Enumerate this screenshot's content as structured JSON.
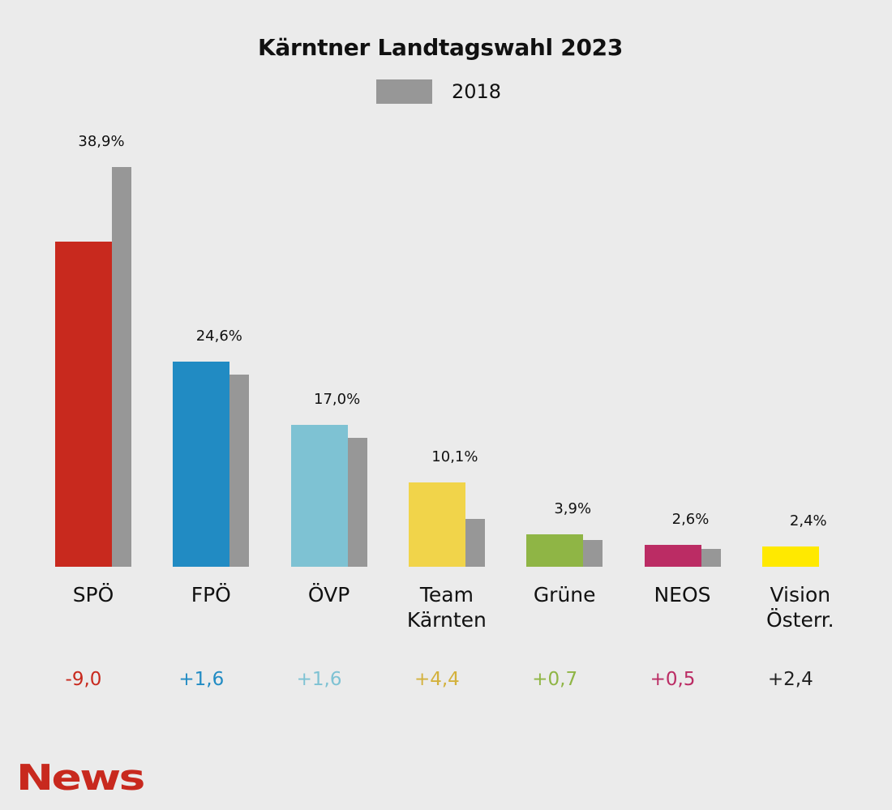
{
  "chart_data": {
    "type": "bar",
    "title": "Kärntner Landtagswahl 2023",
    "legend": [
      {
        "name": "2018",
        "color": "#979797"
      }
    ],
    "legend_placement": "top-center",
    "ylim": [
      0,
      50
    ],
    "grid": false,
    "categories": [
      "SPÖ",
      "FPÖ",
      "ÖVP",
      "Team\nKärnten",
      "Grüne",
      "NEOS",
      "Vision\nÖsterr."
    ],
    "series": [
      {
        "name": "2023",
        "values": [
          38.9,
          24.6,
          17.0,
          10.1,
          3.9,
          2.6,
          2.4
        ],
        "colors": [
          "#c8291e",
          "#218bc3",
          "#7ec2d3",
          "#f1d44a",
          "#8fb545",
          "#bb2c64",
          "#ffe900"
        ]
      },
      {
        "name": "2018",
        "values": [
          47.9,
          23.0,
          15.4,
          5.7,
          3.2,
          2.1,
          null
        ],
        "color": "#979797"
      }
    ],
    "value_labels": [
      "38,9%",
      "24,6%",
      "17,0%",
      "10,1%",
      "3,9%",
      "2,6%",
      "2,4%"
    ],
    "changes": [
      "-9,0",
      "+1,6",
      "+1,6",
      "+4,4",
      "+0,7",
      "+0,5",
      "+2,4"
    ],
    "change_colors": [
      "#c8291e",
      "#218bc3",
      "#7ec2d3",
      "#d3b13c",
      "#8fb545",
      "#bb2c64",
      "#222222"
    ]
  },
  "branding": {
    "logo": "News"
  }
}
